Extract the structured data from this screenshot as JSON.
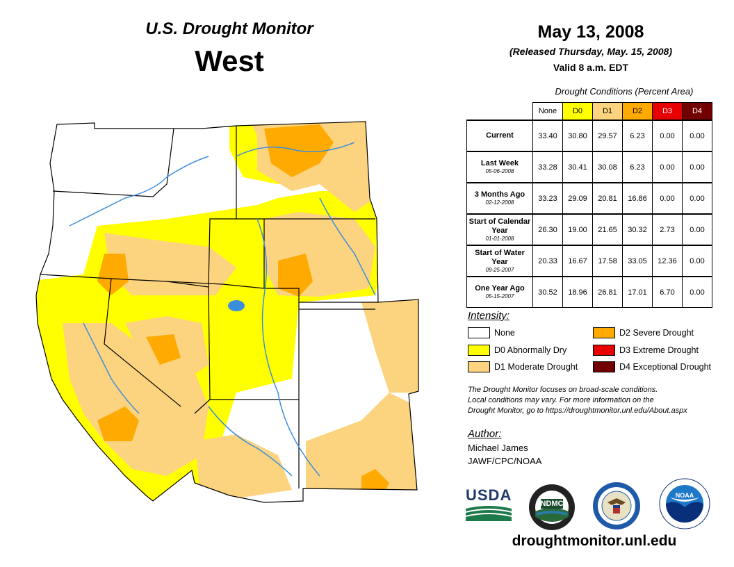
{
  "header": {
    "title": "U.S. Drought Monitor",
    "region": "West",
    "date": "May 13, 2008",
    "released": "(Released Thursday, May. 15, 2008)",
    "valid": "Valid 8 a.m. EDT"
  },
  "table": {
    "caption": "Drought Conditions (Percent Area)",
    "columns": [
      {
        "label": "None",
        "color": "#ffffff",
        "text_color": "#000000"
      },
      {
        "label": "D0",
        "color": "#ffff00",
        "text_color": "#000000"
      },
      {
        "label": "D1",
        "color": "#fcd37f",
        "text_color": "#000000"
      },
      {
        "label": "D2",
        "color": "#ffaa00",
        "text_color": "#000000"
      },
      {
        "label": "D3",
        "color": "#e60000",
        "text_color": "#ffffff"
      },
      {
        "label": "D4",
        "color": "#730000",
        "text_color": "#ffffff"
      }
    ],
    "rows": [
      {
        "label": "Current",
        "sub": "",
        "values": [
          "33.40",
          "30.80",
          "29.57",
          "6.23",
          "0.00",
          "0.00"
        ]
      },
      {
        "label": "Last Week",
        "sub": "05-06-2008",
        "values": [
          "33.28",
          "30.41",
          "30.08",
          "6.23",
          "0.00",
          "0.00"
        ]
      },
      {
        "label": "3 Months Ago",
        "sub": "02-12-2008",
        "values": [
          "33.23",
          "29.09",
          "20.81",
          "16.86",
          "0.00",
          "0.00"
        ]
      },
      {
        "label": "Start of Calendar Year",
        "sub": "01-01-2008",
        "values": [
          "26.30",
          "19.00",
          "21.65",
          "30.32",
          "2.73",
          "0.00"
        ]
      },
      {
        "label": "Start of Water Year",
        "sub": "09-25-2007",
        "values": [
          "20.33",
          "16.67",
          "17.58",
          "33.05",
          "12.36",
          "0.00"
        ]
      },
      {
        "label": "One Year Ago",
        "sub": "05-15-2007",
        "values": [
          "30.52",
          "18.96",
          "26.81",
          "17.01",
          "6.70",
          "0.00"
        ]
      }
    ]
  },
  "legend": {
    "heading": "Intensity:",
    "items": [
      {
        "label": "None",
        "color": "#ffffff"
      },
      {
        "label": "D0 Abnormally Dry",
        "color": "#ffff00"
      },
      {
        "label": "D1 Moderate Drought",
        "color": "#fcd37f"
      },
      {
        "label": "D2 Severe Drought",
        "color": "#ffaa00"
      },
      {
        "label": "D3 Extreme Drought",
        "color": "#e60000"
      },
      {
        "label": "D4 Exceptional Drought",
        "color": "#730000"
      }
    ]
  },
  "note": {
    "line1": "The Drought Monitor focuses on broad-scale conditions.",
    "line2": "Local conditions may vary. For more information on the",
    "line3": "Drought Monitor, go to https://droughtmonitor.unl.edu/About.aspx"
  },
  "author": {
    "heading": "Author:",
    "name": "Michael James",
    "org": "JAWF/CPC/NOAA"
  },
  "logos": {
    "usda": "USDA",
    "ndmc": "NDMC",
    "noaa": "NOAA"
  },
  "website": "droughtmonitor.unl.edu"
}
